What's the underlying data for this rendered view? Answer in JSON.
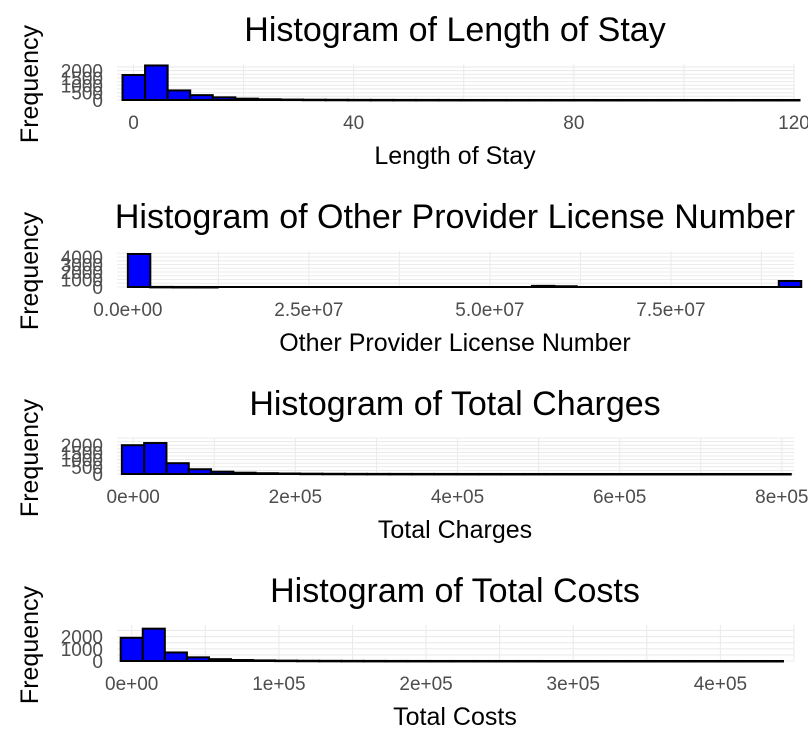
{
  "chart_data": [
    {
      "type": "bar",
      "title": "Histogram of Length of Stay",
      "xlabel": "Length of Stay",
      "ylabel": "Frequency",
      "xticks": [
        0,
        40,
        80,
        120
      ],
      "xtick_labels": [
        "0",
        "40",
        "80",
        "120"
      ],
      "yticks": [
        0,
        500,
        1000,
        1500,
        2000
      ],
      "ytick_labels": [
        "0",
        "500",
        "1000",
        "1500",
        "2000"
      ],
      "xlim": [
        -3,
        120
      ],
      "ylim": [
        0,
        2450
      ],
      "bin_width": 4.1,
      "bins_start": -2,
      "values": [
        1700,
        2350,
        650,
        330,
        180,
        90,
        50,
        30,
        20,
        15,
        10,
        8,
        6,
        5,
        4,
        3,
        3,
        2,
        2,
        2,
        2,
        1,
        1,
        1,
        1,
        1,
        1,
        1,
        1,
        1
      ],
      "fill": "#0000ff",
      "stroke": "#000000",
      "grid": true
    },
    {
      "type": "bar",
      "title": "Histogram of Other Provider License Number",
      "xlabel": "Other Provider License Number",
      "ylabel": "Frequency",
      "xticks": [
        0,
        25000000,
        50000000,
        75000000
      ],
      "xtick_labels": [
        "0.0e+00",
        "2.5e+07",
        "5.0e+07",
        "7.5e+07"
      ],
      "yticks": [
        0,
        1000,
        2000,
        3000,
        4000
      ],
      "ytick_labels": [
        "0",
        "1000",
        "2000",
        "3000",
        "4000"
      ],
      "xlim": [
        -1500000,
        92000000
      ],
      "ylim": [
        0,
        4800
      ],
      "bin_width": 3100000,
      "bins_start": 0,
      "values": [
        4400,
        15,
        5,
        3,
        0,
        0,
        0,
        0,
        0,
        0,
        0,
        0,
        0,
        0,
        0,
        0,
        0,
        0,
        0,
        0,
        0,
        0,
        0,
        0,
        0,
        0,
        0,
        0,
        0,
        0
      ],
      "extra_bars": [
        {
          "index": 18,
          "value": 150
        },
        {
          "index": 19,
          "value": 100
        },
        {
          "index": 29,
          "value": 800
        }
      ],
      "fill": "#0000ff",
      "stroke": "#000000",
      "grid": true
    },
    {
      "type": "bar",
      "title": "Histogram of Total Charges",
      "xlabel": "Total Charges",
      "ylabel": "Frequency",
      "xticks": [
        0,
        200000,
        400000,
        600000,
        800000
      ],
      "xtick_labels": [
        "0e+00",
        "2e+05",
        "4e+05",
        "6e+05",
        "8e+05"
      ],
      "yticks": [
        0,
        500,
        1000,
        1500,
        2000
      ],
      "ytick_labels": [
        "0",
        "500",
        "1000",
        "1500",
        "2000"
      ],
      "xlim": [
        -20000,
        815000
      ],
      "ylim": [
        0,
        2500
      ],
      "bin_width": 27500,
      "bins_start": -14000,
      "values": [
        2000,
        2150,
        750,
        330,
        160,
        90,
        55,
        35,
        22,
        15,
        10,
        8,
        6,
        5,
        4,
        3,
        3,
        2,
        2,
        2,
        1,
        1,
        1,
        1,
        1,
        1,
        1,
        1,
        1,
        1
      ],
      "fill": "#0000ff",
      "stroke": "#000000",
      "grid": true
    },
    {
      "type": "bar",
      "title": "Histogram of Total Costs",
      "xlabel": "Total Costs",
      "ylabel": "Frequency",
      "xticks": [
        0,
        100000,
        200000,
        300000,
        400000
      ],
      "xtick_labels": [
        "0e+00",
        "1e+05",
        "2e+05",
        "3e+05",
        "4e+05"
      ],
      "yticks": [
        0,
        1000,
        2000
      ],
      "ytick_labels": [
        "0",
        "1000",
        "2000"
      ],
      "xlim": [
        -10000,
        450000
      ],
      "ylim": [
        0,
        2950
      ],
      "bin_width": 15000,
      "bins_start": -7500,
      "values": [
        1900,
        2650,
        700,
        300,
        150,
        80,
        50,
        30,
        20,
        14,
        10,
        7,
        5,
        4,
        3,
        3,
        2,
        2,
        2,
        1,
        1,
        1,
        1,
        1,
        1,
        1,
        1,
        1,
        1,
        1
      ],
      "fill": "#0000ff",
      "stroke": "#000000",
      "grid": true
    }
  ]
}
